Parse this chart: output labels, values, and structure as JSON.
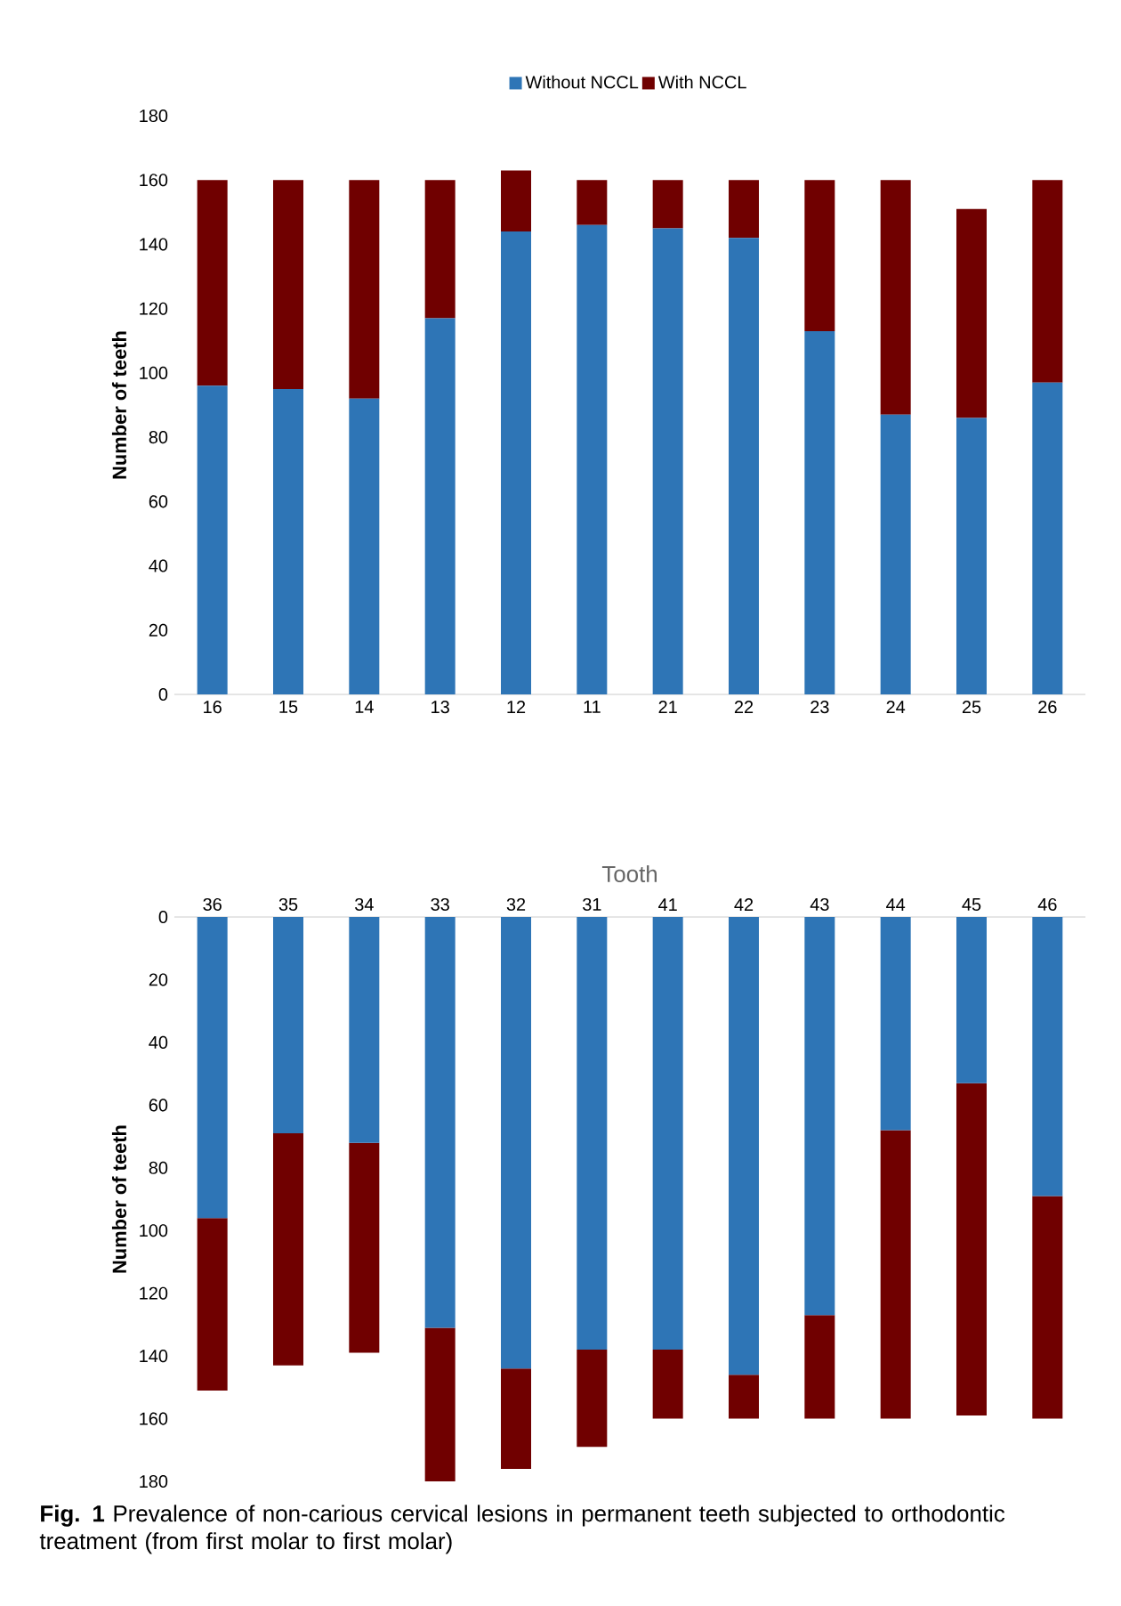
{
  "chart_data": [
    {
      "type": "bar",
      "stacked": true,
      "ylabel": "Number of teeth",
      "categories": [
        "16",
        "15",
        "14",
        "13",
        "12",
        "11",
        "21",
        "22",
        "23",
        "24",
        "25",
        "26"
      ],
      "series": [
        {
          "name": "Without NCCL",
          "color": "#2e75b6",
          "values": [
            96,
            95,
            92,
            117,
            144,
            146,
            145,
            142,
            113,
            87,
            86,
            97
          ]
        },
        {
          "name": "With NCCL",
          "color": "#700000",
          "values": [
            64,
            65,
            68,
            43,
            19,
            14,
            15,
            18,
            47,
            73,
            65,
            63
          ]
        }
      ],
      "ylim": [
        0,
        180
      ],
      "yticks": [
        0,
        20,
        40,
        60,
        80,
        100,
        120,
        140,
        160,
        180
      ],
      "legend": "top"
    },
    {
      "type": "bar",
      "stacked": true,
      "xlabel": "Tooth",
      "ylabel": "Number of teeth",
      "categories": [
        "36",
        "35",
        "34",
        "33",
        "32",
        "31",
        "41",
        "42",
        "43",
        "44",
        "45",
        "46"
      ],
      "series": [
        {
          "color": "#2e75b6",
          "values": [
            96,
            69,
            72,
            131,
            144,
            138,
            138,
            146,
            127,
            68,
            53,
            89
          ]
        },
        {
          "color": "#700000",
          "values": [
            55,
            74,
            67,
            49,
            32,
            31,
            22,
            14,
            33,
            92,
            106,
            71
          ]
        }
      ],
      "ylim": [
        180,
        0
      ],
      "yticks": [
        0,
        20,
        40,
        60,
        80,
        100,
        120,
        140,
        160,
        180
      ],
      "annotations": [
        "**Fig. 1** Prevalence of non-carious cervical lesions in permanent teeth subjected to orthodontic treatment (from first molar to first molar)"
      ]
    }
  ]
}
